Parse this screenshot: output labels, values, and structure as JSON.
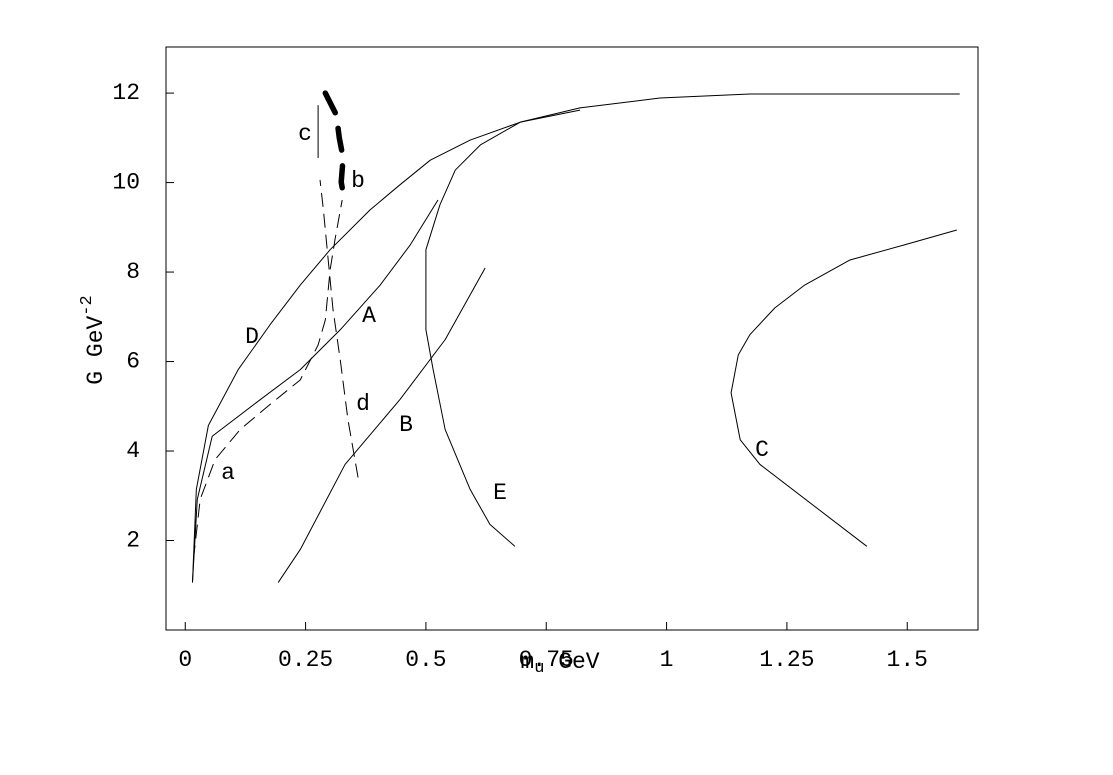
{
  "chart_data": {
    "type": "line",
    "xlabel": {
      "base": "m",
      "sub": "u",
      "rest": " GeV"
    },
    "ylabel": {
      "base": "G GeV",
      "sup": "-2"
    },
    "xlim": [
      -0.04,
      1.647
    ],
    "ylim": [
      0,
      13.03
    ],
    "xticks": [
      0,
      0.25,
      0.5,
      0.75,
      1,
      1.25,
      1.5
    ],
    "yticks": [
      2,
      4,
      6,
      8,
      10,
      12
    ],
    "series": [
      {
        "name": "D",
        "color": "#000000",
        "style": "solid",
        "x": [
          0.015,
          0.023,
          0.048,
          0.11,
          0.176,
          0.239,
          0.301,
          0.384,
          0.446,
          0.509,
          0.592,
          0.696,
          0.82,
          0.986,
          1.173,
          1.609
        ],
        "values": [
          1.06,
          3.14,
          4.57,
          5.82,
          6.82,
          7.71,
          8.5,
          9.39,
          9.95,
          10.5,
          10.95,
          11.35,
          11.67,
          11.89,
          11.98,
          11.98
        ]
      },
      {
        "name": "A",
        "color": "#000000",
        "style": "solid",
        "x": [
          0.015,
          0.025,
          0.056,
          0.156,
          0.239,
          0.322,
          0.405,
          0.467,
          0.525
        ],
        "values": [
          1.06,
          2.92,
          4.33,
          5.15,
          5.82,
          6.71,
          7.71,
          8.6,
          9.61
        ]
      },
      {
        "name": "B",
        "color": "#000000",
        "style": "solid",
        "x": [
          0.193,
          0.239,
          0.332,
          0.446,
          0.54,
          0.623
        ],
        "values": [
          1.06,
          1.8,
          3.7,
          5.15,
          6.49,
          8.09
        ]
      },
      {
        "name": "C",
        "color": "#000000",
        "style": "solid",
        "x": [
          1.416,
          1.194,
          1.153,
          1.134,
          1.149,
          1.173,
          1.225,
          1.287,
          1.381,
          1.495,
          1.603
        ],
        "values": [
          1.87,
          3.7,
          4.25,
          5.3,
          6.15,
          6.6,
          7.2,
          7.71,
          8.27,
          8.61,
          8.94
        ]
      },
      {
        "name": "E",
        "color": "#000000",
        "style": "solid",
        "x": [
          0.685,
          0.633,
          0.592,
          0.54,
          0.515,
          0.5,
          0.5,
          0.529,
          0.561,
          0.613,
          0.696,
          0.82
        ],
        "values": [
          1.87,
          2.36,
          3.14,
          4.48,
          5.82,
          6.71,
          8.5,
          9.5,
          10.28,
          10.84,
          11.35,
          11.62
        ]
      },
      {
        "name": "a",
        "color": "#000000",
        "style": "dashed",
        "x": [
          0.017,
          0.031,
          0.062,
          0.114,
          0.176,
          0.239,
          0.276,
          0.291,
          0.301,
          0.311,
          0.326
        ],
        "values": [
          1.58,
          2.92,
          3.81,
          4.48,
          5.04,
          5.59,
          6.37,
          6.93,
          8.05,
          8.72,
          9.61
        ]
      },
      {
        "name": "d",
        "color": "#000000",
        "style": "dashed",
        "x": [
          0.359,
          0.338,
          0.322,
          0.307,
          0.297,
          0.287,
          0.28
        ],
        "values": [
          3.41,
          4.7,
          6.04,
          7.16,
          8.27,
          9.39,
          10.06
        ]
      },
      {
        "name": "b",
        "color": "#000000",
        "style": "thick-dashed",
        "x": [
          0.291,
          0.314,
          0.32,
          0.328,
          0.324,
          0.328
        ],
        "values": [
          12.0,
          11.51,
          11.0,
          10.55,
          10.01,
          9.77
        ]
      },
      {
        "name": "c",
        "color": "#000000",
        "style": "solid",
        "x": [
          0.276,
          0.276
        ],
        "values": [
          10.55,
          11.73
        ]
      }
    ]
  }
}
